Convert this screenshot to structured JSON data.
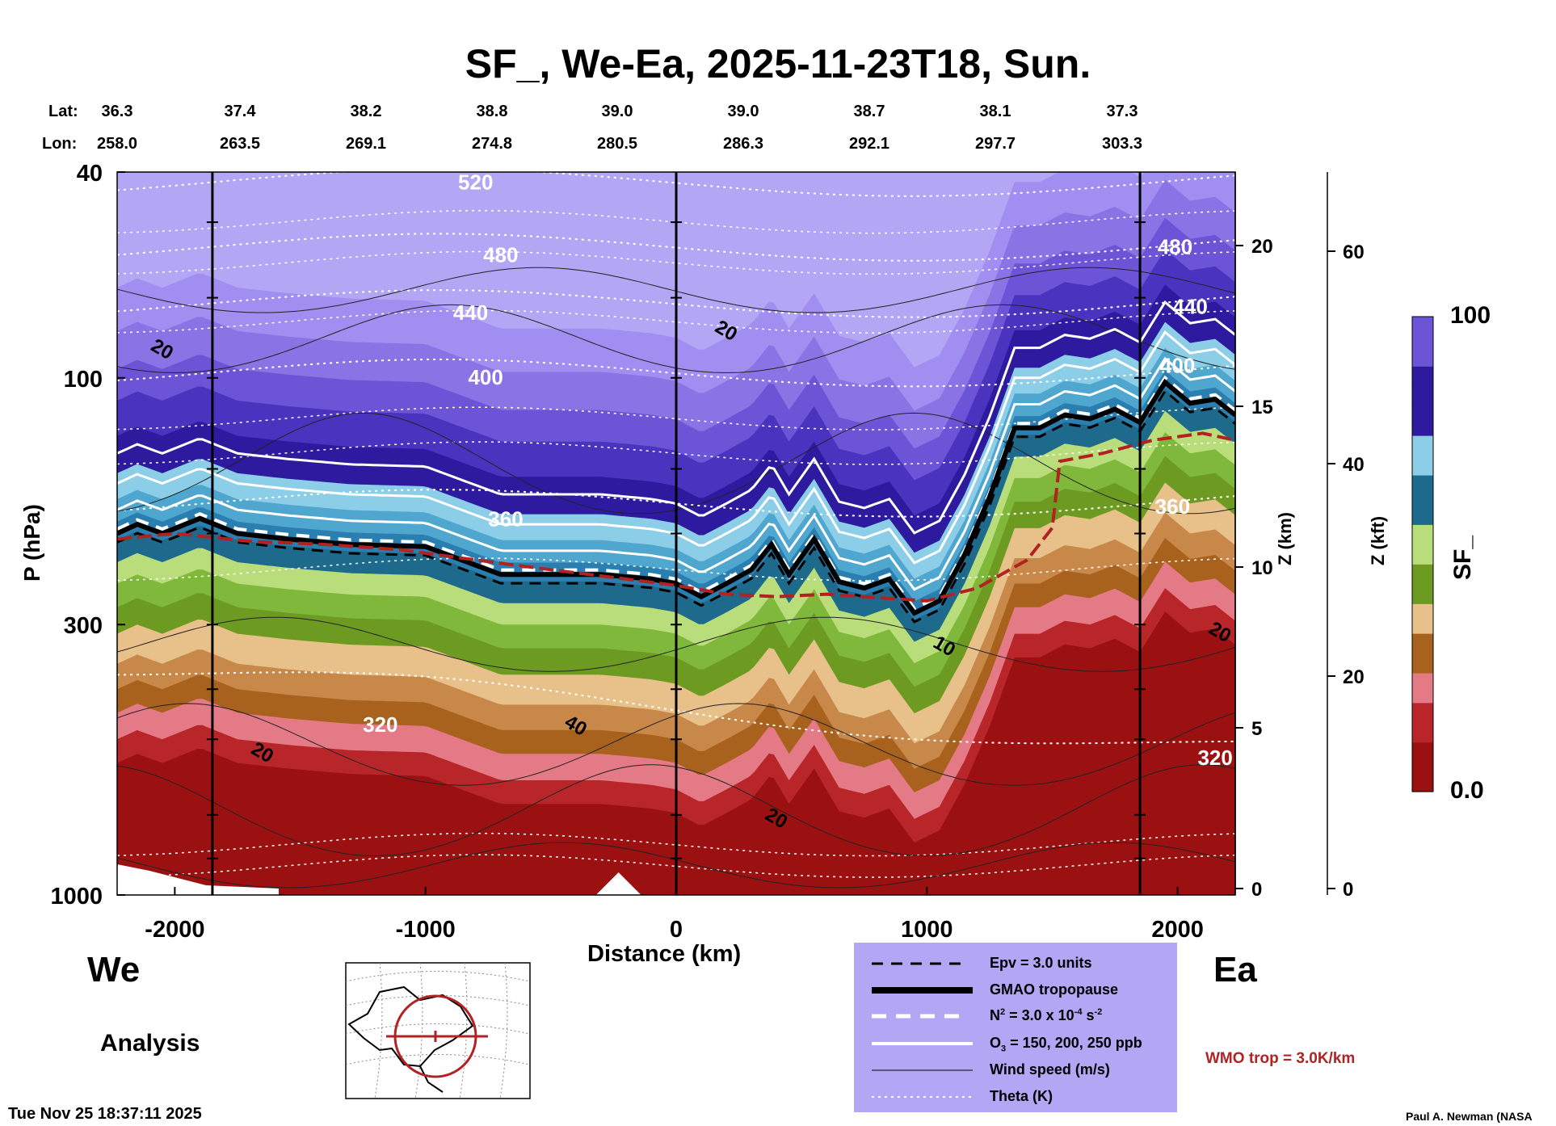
{
  "title": "SF_, We-Ea, 2025-11-23T18, Sun.",
  "latlon": {
    "lat_label": "Lat:",
    "lon_label": "Lon:",
    "lat": [
      "36.3",
      "37.4",
      "38.2",
      "38.8",
      "39.0",
      "39.0",
      "38.7",
      "38.1",
      "37.3"
    ],
    "lon": [
      "258.0",
      "263.5",
      "269.1",
      "274.8",
      "280.5",
      "286.3",
      "292.1",
      "297.7",
      "303.3"
    ]
  },
  "side_labels": {
    "west": "We",
    "east": "Ea",
    "analysis": "Analysis"
  },
  "legend": {
    "items": [
      {
        "style": "epv",
        "label": "Epv = 3.0 units"
      },
      {
        "style": "tropopause",
        "label": "GMAO tropopause"
      },
      {
        "style": "n2",
        "label_main": "N",
        "label_sup1": "2",
        "label_rest": " = 3.0 x 10",
        "label_sup2": "-4",
        "label_end": " s",
        "label_sup3": "-2"
      },
      {
        "style": "ozone",
        "label_main": "O",
        "label_sub": "3",
        "label_rest": " = 150, 200, 250 ppb"
      },
      {
        "style": "wind",
        "label": "Wind speed (m/s)"
      },
      {
        "style": "theta",
        "label": "Theta (K)"
      }
    ]
  },
  "wmo_label": "WMO trop = 3.0K/km",
  "footer": {
    "timestamp": "Tue Nov 25 18:37:11 2025",
    "credit": "Paul A. Newman (NASA"
  },
  "colorbar": {
    "label": "SF_",
    "max_label": "100",
    "min_label": "0.0"
  },
  "colors": {
    "stratosphere_top": "#b3a6f5",
    "stratosphere_mid": "#3b1fb0",
    "tropopause_blue": "#2b7fb0",
    "mid_green": "#7fb83a",
    "tan": "#c8884a",
    "troposphere_red": "#9b1111",
    "wmo_red": "#b22222"
  },
  "chart_data": {
    "type": "heatmap",
    "title": "SF_, We-Ea, 2025-11-23T18, Sun.",
    "xlabel": "Distance (km)",
    "ylabel": "P (hPa)",
    "ylabel_right_km": "Z (km)",
    "ylabel_right_kft": "Z (kft)",
    "xlim": [
      -2230,
      2230
    ],
    "x_ticks": [
      -2000,
      -1000,
      0,
      1000,
      2000
    ],
    "x_tick_labels": [
      "-2000",
      "-1000",
      "0",
      "1000",
      "2000"
    ],
    "y_scale": "log",
    "ylim": [
      1000,
      40
    ],
    "y_ticks": [
      40,
      100,
      300,
      1000
    ],
    "y_tick_labels": [
      "40",
      "100",
      "300",
      "1000"
    ],
    "z_km_ticks": [
      0,
      5,
      10,
      15,
      20
    ],
    "z_km_tick_labels": [
      "0",
      "5",
      "10",
      "15",
      "20"
    ],
    "z_kft_ticks": [
      0,
      20,
      40,
      60
    ],
    "z_kft_tick_labels": [
      "0",
      "20",
      "40",
      "60"
    ],
    "vertical_lines_km": [
      -1850,
      0,
      1850
    ],
    "colorbar_range": [
      0.0,
      100
    ],
    "theta_levels": [
      {
        "label": "520",
        "pressure": 42
      },
      {
        "label": "480",
        "pressure": 56
      },
      {
        "label": "440",
        "pressure": 72
      },
      {
        "label": "400",
        "pressure": 98
      },
      {
        "label": "360",
        "pressure": 175
      },
      {
        "label": "320",
        "pressure": 440
      }
    ],
    "theta_labels_drawn": [
      {
        "text": "520",
        "x": -800,
        "p": 42
      },
      {
        "text": "480",
        "x": -700,
        "p": 58
      },
      {
        "text": "440",
        "x": -820,
        "p": 75
      },
      {
        "text": "400",
        "x": -760,
        "p": 100
      },
      {
        "text": "360",
        "x": -680,
        "p": 188
      },
      {
        "text": "320",
        "x": -1180,
        "p": 470
      },
      {
        "text": "480",
        "x": 1990,
        "p": 56
      },
      {
        "text": "440",
        "x": 2050,
        "p": 73
      },
      {
        "text": "400",
        "x": 2000,
        "p": 95
      },
      {
        "text": "360",
        "x": 1980,
        "p": 178
      },
      {
        "text": "320",
        "x": 2150,
        "p": 545
      }
    ],
    "wind_labels_drawn": [
      {
        "text": "20",
        "x": -2050,
        "p": 88
      },
      {
        "text": "20",
        "x": 200,
        "p": 81
      },
      {
        "text": "40",
        "x": -400,
        "p": 470
      },
      {
        "text": "20",
        "x": -1650,
        "p": 530
      },
      {
        "text": "10",
        "x": 1070,
        "p": 330
      },
      {
        "text": "20",
        "x": 400,
        "p": 710
      },
      {
        "text": "20",
        "x": 2170,
        "p": 310
      }
    ],
    "gmao_tropopause": [
      [
        -2230,
        200
      ],
      [
        -2150,
        192
      ],
      [
        -2050,
        200
      ],
      [
        -1900,
        187
      ],
      [
        -1750,
        200
      ],
      [
        -1550,
        205
      ],
      [
        -1300,
        210
      ],
      [
        -1000,
        212
      ],
      [
        -700,
        240
      ],
      [
        -300,
        240
      ],
      [
        -100,
        245
      ],
      [
        0,
        250
      ],
      [
        100,
        265
      ],
      [
        200,
        250
      ],
      [
        300,
        235
      ],
      [
        380,
        210
      ],
      [
        450,
        240
      ],
      [
        550,
        205
      ],
      [
        650,
        248
      ],
      [
        750,
        255
      ],
      [
        850,
        245
      ],
      [
        950,
        285
      ],
      [
        1050,
        270
      ],
      [
        1150,
        220
      ],
      [
        1250,
        170
      ],
      [
        1350,
        125
      ],
      [
        1450,
        125
      ],
      [
        1550,
        118
      ],
      [
        1650,
        120
      ],
      [
        1750,
        115
      ],
      [
        1850,
        122
      ],
      [
        1950,
        102
      ],
      [
        2050,
        112
      ],
      [
        2150,
        110
      ],
      [
        2230,
        118
      ]
    ],
    "wmo_tropopause": [
      [
        -2230,
        205
      ],
      [
        -2000,
        200
      ],
      [
        -1700,
        207
      ],
      [
        -1400,
        210
      ],
      [
        -1100,
        215
      ],
      [
        -800,
        225
      ],
      [
        -500,
        235
      ],
      [
        -200,
        245
      ],
      [
        0,
        252
      ],
      [
        200,
        262
      ],
      [
        400,
        265
      ],
      [
        600,
        262
      ],
      [
        800,
        266
      ],
      [
        1000,
        270
      ],
      [
        1200,
        255
      ],
      [
        1400,
        225
      ],
      [
        1500,
        195
      ],
      [
        1530,
        145
      ],
      [
        1700,
        140
      ],
      [
        1900,
        132
      ],
      [
        2100,
        128
      ],
      [
        2230,
        132
      ]
    ],
    "colorbar_stops": [
      {
        "value": 0,
        "color": "#9b1111"
      },
      {
        "value": 10,
        "color": "#b8262a"
      },
      {
        "value": 18,
        "color": "#e47a86"
      },
      {
        "value": 25,
        "color": "#a8621e"
      },
      {
        "value": 32,
        "color": "#e8c08a"
      },
      {
        "value": 38,
        "color": "#6d9b22"
      },
      {
        "value": 46,
        "color": "#b9dd7a"
      },
      {
        "value": 55,
        "color": "#1e6a8c"
      },
      {
        "value": 65,
        "color": "#8ccde8"
      },
      {
        "value": 75,
        "color": "#2d1a9e"
      },
      {
        "value": 88,
        "color": "#6b55d6"
      },
      {
        "value": 100,
        "color": "#b3a6f5"
      }
    ]
  }
}
